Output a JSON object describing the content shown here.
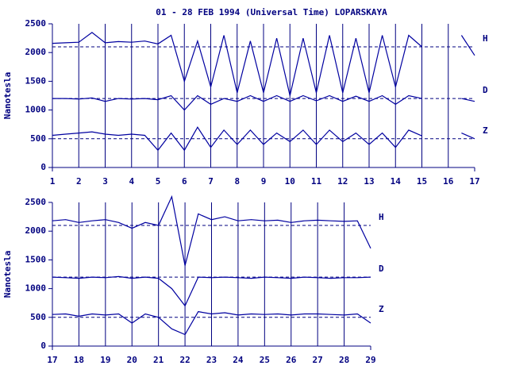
{
  "chart_data": [
    {
      "type": "line",
      "title": "01 - 28 FEB 1994 (Universal Time) LOPARSKAYA",
      "y_label": "Nanotesla",
      "x": [
        1,
        1.5,
        2,
        2.5,
        3,
        3.5,
        4,
        4.5,
        5,
        5.5,
        6,
        6.5,
        7,
        7.5,
        8,
        8.5,
        9,
        9.5,
        10,
        10.5,
        11,
        11.5,
        12,
        12.5,
        13,
        13.5,
        14,
        14.5,
        15,
        15.5,
        16,
        16.5,
        17
      ],
      "xlim": [
        1,
        17
      ],
      "xticks": [
        1,
        2,
        3,
        4,
        5,
        6,
        7,
        8,
        9,
        10,
        11,
        12,
        13,
        14,
        15,
        16,
        17
      ],
      "ylim": [
        0,
        2500
      ],
      "yticks": [
        0,
        500,
        1000,
        1500,
        2000,
        2500
      ],
      "baselines": [
        2100,
        1200,
        500
      ],
      "series": [
        {
          "name": "H",
          "color": "#0000a0",
          "values": [
            2160,
            2170,
            2180,
            2350,
            2170,
            2190,
            2180,
            2200,
            2150,
            2300,
            1500,
            2200,
            1400,
            2300,
            1300,
            2200,
            1300,
            2250,
            1250,
            2250,
            1300,
            2300,
            1300,
            2250,
            1300,
            2300,
            1400,
            2300,
            2100,
            null,
            null,
            2300,
            1950
          ]
        },
        {
          "name": "D",
          "color": "#0000a0",
          "values": [
            1200,
            1200,
            1190,
            1210,
            1150,
            1200,
            1190,
            1200,
            1180,
            1250,
            1000,
            1250,
            1100,
            1200,
            1150,
            1250,
            1150,
            1250,
            1150,
            1250,
            1160,
            1250,
            1150,
            1240,
            1150,
            1250,
            1100,
            1250,
            1200,
            null,
            null,
            1200,
            1150
          ]
        },
        {
          "name": "Z",
          "color": "#0000a0",
          "values": [
            560,
            580,
            600,
            620,
            580,
            560,
            580,
            560,
            300,
            600,
            300,
            700,
            350,
            650,
            400,
            650,
            400,
            600,
            450,
            650,
            400,
            650,
            450,
            600,
            400,
            600,
            350,
            650,
            550,
            null,
            null,
            600,
            500
          ]
        }
      ]
    },
    {
      "type": "line",
      "y_label": "Nanotesla",
      "x": [
        17,
        17.5,
        18,
        18.5,
        19,
        19.5,
        20,
        20.5,
        21,
        21.5,
        22,
        22.5,
        23,
        23.5,
        24,
        24.5,
        25,
        25.5,
        26,
        26.5,
        27,
        27.5,
        28,
        28.5,
        29
      ],
      "xlim": [
        17,
        29
      ],
      "xticks": [
        17,
        18,
        19,
        20,
        21,
        22,
        23,
        24,
        25,
        26,
        27,
        28,
        29
      ],
      "ylim": [
        0,
        2500
      ],
      "yticks": [
        0,
        500,
        1000,
        1500,
        2000,
        2500
      ],
      "baselines": [
        2100,
        1200,
        500
      ],
      "series": [
        {
          "name": "H",
          "color": "#0000a0",
          "values": [
            2180,
            2200,
            2150,
            2180,
            2200,
            2150,
            2050,
            2150,
            2100,
            2600,
            1400,
            2300,
            2200,
            2250,
            2180,
            2200,
            2180,
            2190,
            2150,
            2180,
            2190,
            2180,
            2170,
            2180,
            1700
          ]
        },
        {
          "name": "D",
          "color": "#0000a0",
          "values": [
            1200,
            1190,
            1180,
            1200,
            1190,
            1210,
            1180,
            1200,
            1180,
            1000,
            700,
            1200,
            1190,
            1200,
            1190,
            1180,
            1200,
            1190,
            1180,
            1200,
            1190,
            1180,
            1190,
            1190,
            1200
          ]
        },
        {
          "name": "Z",
          "color": "#0000a0",
          "values": [
            550,
            560,
            520,
            560,
            540,
            560,
            400,
            560,
            500,
            300,
            200,
            600,
            560,
            580,
            540,
            560,
            550,
            560,
            540,
            560,
            560,
            550,
            540,
            560,
            400
          ]
        }
      ]
    }
  ]
}
